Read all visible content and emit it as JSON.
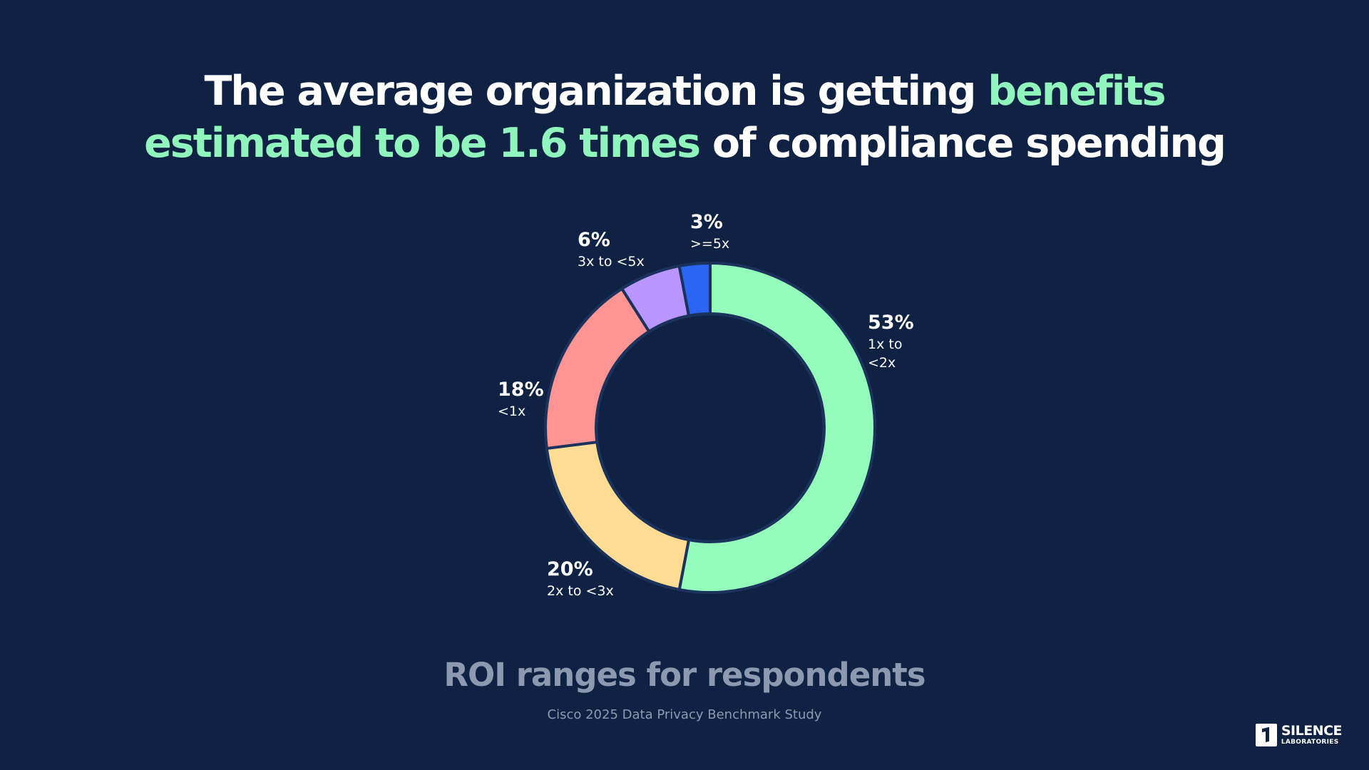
{
  "headline": {
    "part1": "The average organization is getting ",
    "accent1": "benefits",
    "accent2": "estimated to be 1.6 times",
    "part2": " of compliance spending"
  },
  "chart_data": {
    "type": "pie",
    "variant": "donut",
    "title": "ROI ranges for respondents",
    "source": "Cisco 2025 Data Privacy Benchmark Study",
    "slices": [
      {
        "pct_label": "53%",
        "label_lines": [
          "1x to",
          "<2x"
        ],
        "value": 53,
        "color": "#94fdbb"
      },
      {
        "pct_label": "20%",
        "label_lines": [
          "2x to <3x"
        ],
        "value": 20,
        "color": "#fedc94"
      },
      {
        "pct_label": "18%",
        "label_lines": [
          "<1x"
        ],
        "value": 18,
        "color": "#fe9494"
      },
      {
        "pct_label": "6%",
        "label_lines": [
          "3x to <5x"
        ],
        "value": 6,
        "color": "#b995fe"
      },
      {
        "pct_label": "3%",
        "label_lines": [
          ">=5x"
        ],
        "value": 3,
        "color": "#2b65f5"
      }
    ]
  },
  "logo": {
    "top": "SILENCE",
    "bottom": "LABORATORIES"
  }
}
